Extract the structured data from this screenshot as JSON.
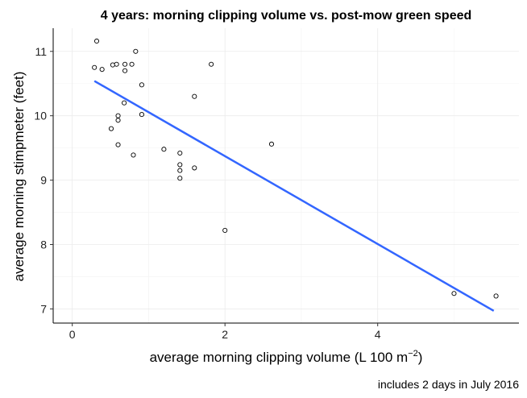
{
  "chart_data": {
    "type": "scatter",
    "title": "4 years: morning clipping volume vs. post-mow green speed",
    "xlabel": "average morning clipping volume (L 100 m",
    "xlabel_sup": "−2",
    "xlabel_end": ")",
    "ylabel": "average morning stimpmeter (feet)",
    "caption": "includes 2 days in July 2016",
    "xlim": [
      -0.25,
      5.85
    ],
    "ylim": [
      6.78,
      11.36
    ],
    "xticks": [
      0,
      2,
      4
    ],
    "yticks": [
      7,
      8,
      9,
      10,
      11
    ],
    "grid": true,
    "points": [
      {
        "x": 0.32,
        "y": 11.16
      },
      {
        "x": 0.83,
        "y": 11.0
      },
      {
        "x": 0.29,
        "y": 10.75
      },
      {
        "x": 0.39,
        "y": 10.72
      },
      {
        "x": 0.53,
        "y": 10.79
      },
      {
        "x": 0.58,
        "y": 10.8
      },
      {
        "x": 0.69,
        "y": 10.8
      },
      {
        "x": 0.78,
        "y": 10.8
      },
      {
        "x": 0.69,
        "y": 10.7
      },
      {
        "x": 1.82,
        "y": 10.8
      },
      {
        "x": 0.91,
        "y": 10.48
      },
      {
        "x": 1.6,
        "y": 10.3
      },
      {
        "x": 0.68,
        "y": 10.2
      },
      {
        "x": 0.6,
        "y": 10.0
      },
      {
        "x": 0.91,
        "y": 10.02
      },
      {
        "x": 0.6,
        "y": 9.93
      },
      {
        "x": 0.51,
        "y": 9.8
      },
      {
        "x": 0.6,
        "y": 9.55
      },
      {
        "x": 1.2,
        "y": 9.48
      },
      {
        "x": 1.41,
        "y": 9.42
      },
      {
        "x": 0.8,
        "y": 9.39
      },
      {
        "x": 2.61,
        "y": 9.56
      },
      {
        "x": 1.41,
        "y": 9.24
      },
      {
        "x": 1.6,
        "y": 9.19
      },
      {
        "x": 1.41,
        "y": 9.15
      },
      {
        "x": 1.41,
        "y": 9.03
      },
      {
        "x": 2.0,
        "y": 8.22
      },
      {
        "x": 5.0,
        "y": 7.24
      },
      {
        "x": 5.55,
        "y": 7.2
      }
    ],
    "fit_line": {
      "x": [
        0.29,
        5.52
      ],
      "y": [
        10.54,
        6.97
      ],
      "color": "#3366FF"
    }
  }
}
